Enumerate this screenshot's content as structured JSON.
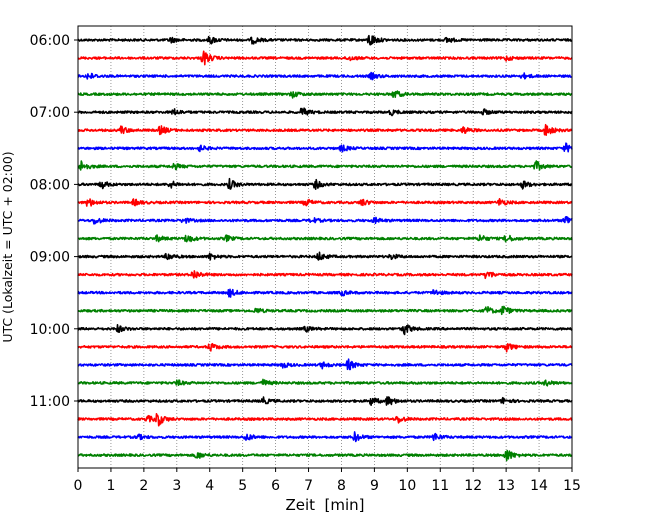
{
  "chart_data": {
    "type": "line",
    "xlabel": "Zeit  [min]",
    "ylabel": "UTC (Lokalzeit = UTC + 02:00)",
    "xlim": [
      0,
      15
    ],
    "x_ticks": [
      0,
      1,
      2,
      3,
      4,
      5,
      6,
      7,
      8,
      9,
      10,
      11,
      12,
      13,
      14,
      15
    ],
    "x_tick_labels": [
      "0",
      "1",
      "2",
      "3",
      "4",
      "5",
      "6",
      "7",
      "8",
      "9",
      "10",
      "11",
      "12",
      "13",
      "14",
      "15"
    ],
    "y_tick_labels": [
      {
        "label": "06:00",
        "trace_index": 0
      },
      {
        "label": "07:00",
        "trace_index": 4
      },
      {
        "label": "08:00",
        "trace_index": 8
      },
      {
        "label": "09:00",
        "trace_index": 12
      },
      {
        "label": "10:00",
        "trace_index": 16
      },
      {
        "label": "11:00",
        "trace_index": 20
      }
    ],
    "vertical_grid": "dotted",
    "trace_colors": [
      "#000000",
      "#ff0000",
      "#0000ff",
      "#008000"
    ],
    "traces": [
      {
        "start": "06:00",
        "color": "#000000",
        "events": [
          [
            2.8,
            0.3
          ],
          [
            4.0,
            0.45
          ],
          [
            5.3,
            0.4
          ],
          [
            8.85,
            0.8
          ],
          [
            11.2,
            0.3
          ]
        ]
      },
      {
        "start": "06:15",
        "color": "#ff0000",
        "events": [
          [
            3.8,
            0.9
          ],
          [
            8.2,
            0.3
          ],
          [
            13.0,
            0.25
          ]
        ]
      },
      {
        "start": "06:30",
        "color": "#0000ff",
        "events": [
          [
            0.3,
            0.4
          ],
          [
            8.9,
            0.35
          ],
          [
            13.5,
            0.3
          ]
        ]
      },
      {
        "start": "06:45",
        "color": "#008000",
        "events": [
          [
            6.5,
            0.35
          ],
          [
            9.6,
            0.45
          ]
        ]
      },
      {
        "start": "07:00",
        "color": "#000000",
        "events": [
          [
            2.9,
            0.35
          ],
          [
            6.8,
            0.5
          ],
          [
            9.5,
            0.3
          ],
          [
            12.3,
            0.3
          ]
        ]
      },
      {
        "start": "07:15",
        "color": "#ff0000",
        "events": [
          [
            1.3,
            0.45
          ],
          [
            2.5,
            0.5
          ],
          [
            11.7,
            0.4
          ],
          [
            14.2,
            0.7
          ]
        ]
      },
      {
        "start": "07:30",
        "color": "#0000ff",
        "events": [
          [
            3.7,
            0.3
          ],
          [
            8.0,
            0.35
          ],
          [
            14.8,
            0.5
          ]
        ]
      },
      {
        "start": "07:45",
        "color": "#008000",
        "events": [
          [
            0.1,
            0.6
          ],
          [
            2.9,
            0.35
          ],
          [
            13.9,
            0.55
          ]
        ]
      },
      {
        "start": "08:00",
        "color": "#000000",
        "events": [
          [
            0.7,
            0.45
          ],
          [
            2.8,
            0.4
          ],
          [
            4.6,
            0.55
          ],
          [
            7.2,
            0.5
          ],
          [
            13.5,
            0.4
          ]
        ]
      },
      {
        "start": "08:15",
        "color": "#ff0000",
        "events": [
          [
            0.3,
            0.5
          ],
          [
            1.7,
            0.35
          ],
          [
            6.9,
            0.4
          ],
          [
            8.6,
            0.4
          ],
          [
            12.8,
            0.4
          ]
        ]
      },
      {
        "start": "08:30",
        "color": "#0000ff",
        "events": [
          [
            0.5,
            0.4
          ],
          [
            3.2,
            0.3
          ],
          [
            7.1,
            0.3
          ],
          [
            9.0,
            0.3
          ],
          [
            14.8,
            0.6
          ]
        ]
      },
      {
        "start": "08:45",
        "color": "#008000",
        "events": [
          [
            2.4,
            0.3
          ],
          [
            3.3,
            0.5
          ],
          [
            4.5,
            0.3
          ],
          [
            12.2,
            0.4
          ],
          [
            13.0,
            0.45
          ]
        ]
      },
      {
        "start": "09:00",
        "color": "#000000",
        "events": [
          [
            2.7,
            0.4
          ],
          [
            4.0,
            0.35
          ],
          [
            7.3,
            0.5
          ],
          [
            9.5,
            0.3
          ]
        ]
      },
      {
        "start": "09:15",
        "color": "#ff0000",
        "events": [
          [
            3.5,
            0.55
          ],
          [
            12.4,
            0.5
          ]
        ]
      },
      {
        "start": "09:30",
        "color": "#0000ff",
        "events": [
          [
            4.6,
            0.45
          ],
          [
            8.0,
            0.3
          ],
          [
            10.8,
            0.35
          ]
        ]
      },
      {
        "start": "09:45",
        "color": "#008000",
        "events": [
          [
            5.4,
            0.3
          ],
          [
            12.4,
            0.45
          ],
          [
            12.9,
            0.55
          ]
        ]
      },
      {
        "start": "10:00",
        "color": "#000000",
        "events": [
          [
            1.2,
            0.4
          ],
          [
            6.9,
            0.3
          ],
          [
            9.9,
            0.65
          ]
        ]
      },
      {
        "start": "10:15",
        "color": "#ff0000",
        "events": [
          [
            4.0,
            0.45
          ],
          [
            13.0,
            0.5
          ]
        ]
      },
      {
        "start": "10:30",
        "color": "#0000ff",
        "events": [
          [
            6.2,
            0.3
          ],
          [
            7.4,
            0.35
          ],
          [
            8.2,
            0.6
          ]
        ]
      },
      {
        "start": "10:45",
        "color": "#008000",
        "events": [
          [
            3.0,
            0.3
          ],
          [
            5.6,
            0.35
          ],
          [
            14.2,
            0.3
          ]
        ]
      },
      {
        "start": "11:00",
        "color": "#000000",
        "events": [
          [
            5.6,
            0.4
          ],
          [
            8.9,
            0.45
          ],
          [
            9.4,
            0.55
          ],
          [
            12.9,
            0.3
          ]
        ]
      },
      {
        "start": "11:15",
        "color": "#ff0000",
        "events": [
          [
            2.1,
            0.35
          ],
          [
            2.4,
            0.8
          ],
          [
            9.7,
            0.45
          ]
        ]
      },
      {
        "start": "11:30",
        "color": "#0000ff",
        "events": [
          [
            1.8,
            0.3
          ],
          [
            5.1,
            0.4
          ],
          [
            8.4,
            0.5
          ],
          [
            10.8,
            0.45
          ]
        ]
      },
      {
        "start": "11:45",
        "color": "#008000",
        "events": [
          [
            3.6,
            0.4
          ],
          [
            13.0,
            0.7
          ]
        ]
      }
    ]
  }
}
